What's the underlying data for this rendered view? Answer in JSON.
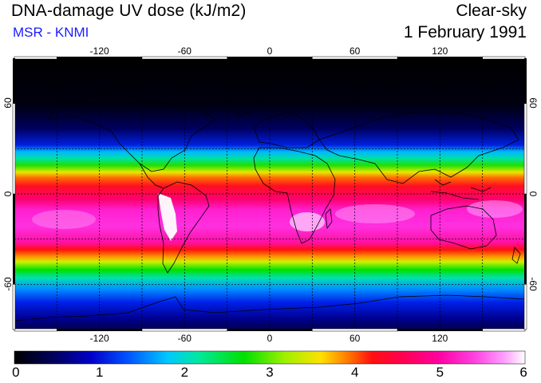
{
  "header": {
    "title": "DNA-damage UV dose (kJ/m2)",
    "credit": "MSR - KNMI",
    "sky_condition": "Clear-sky",
    "date": "1 February 1991"
  },
  "map": {
    "longitude_ticks": [
      "-120",
      "-60",
      "0",
      "60",
      "120"
    ],
    "latitude_ticks": [
      "60",
      "0",
      "-60"
    ],
    "longitude_values": [
      -120,
      -60,
      0,
      60,
      120
    ],
    "latitude_values": [
      60,
      0,
      -60
    ],
    "lon_range": [
      -180,
      180
    ],
    "lat_range": [
      -90,
      90
    ]
  },
  "colorbar": {
    "labels": [
      "0",
      "1",
      "2",
      "3",
      "4",
      "5",
      "6"
    ],
    "range": [
      0,
      6
    ],
    "unit": "kJ/m2"
  },
  "colors": {
    "credit_text": "#1b1bff",
    "scale": [
      "#000000",
      "#000060",
      "#0000c8",
      "#0050ff",
      "#00c8ff",
      "#00e8a0",
      "#00e000",
      "#a0f000",
      "#ffe000",
      "#ff8000",
      "#ff1010",
      "#ff0050",
      "#ff00a0",
      "#ff40e0",
      "#ffa0ff",
      "#ffffff"
    ]
  }
}
